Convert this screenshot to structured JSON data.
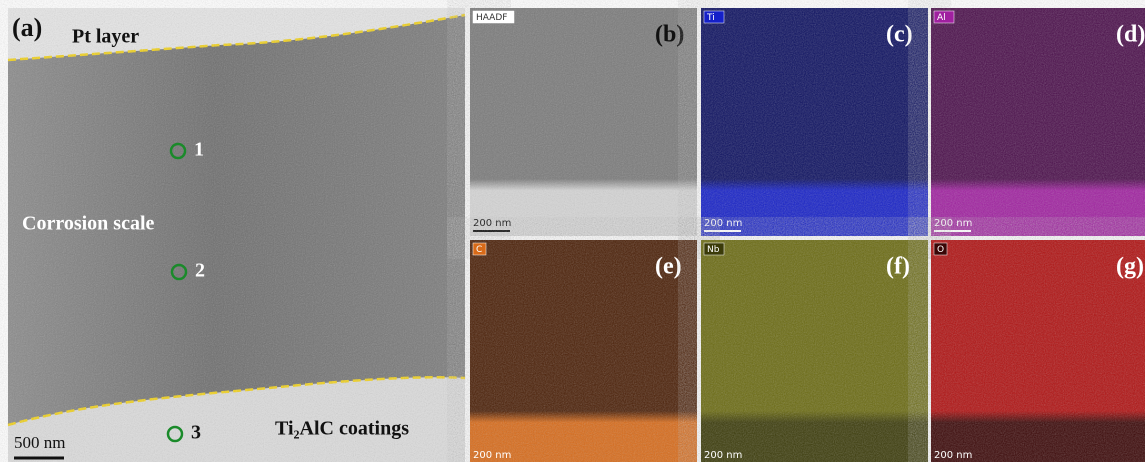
{
  "figure": {
    "main": {
      "label": "(a)",
      "top_label": "Pt layer",
      "middle_label": "Corrosion scale",
      "bottom_label": "Ti₂AlC coatings",
      "points": [
        "1",
        "2",
        "3"
      ],
      "scale_bar": "500 nm"
    },
    "maps": [
      {
        "tag": "HAADF",
        "label": "(b)",
        "scale_bar": "200 nm"
      },
      {
        "tag": "Ti",
        "label": "(c)",
        "scale_bar": "200 nm"
      },
      {
        "tag": "Al",
        "label": "(d)",
        "scale_bar": "200 nm"
      },
      {
        "tag": "C",
        "label": "(e)",
        "scale_bar": "200 nm"
      },
      {
        "tag": "Nb",
        "label": "(f)",
        "scale_bar": "200 nm"
      },
      {
        "tag": "O",
        "label": "(g)",
        "scale_bar": "200 nm"
      }
    ]
  }
}
